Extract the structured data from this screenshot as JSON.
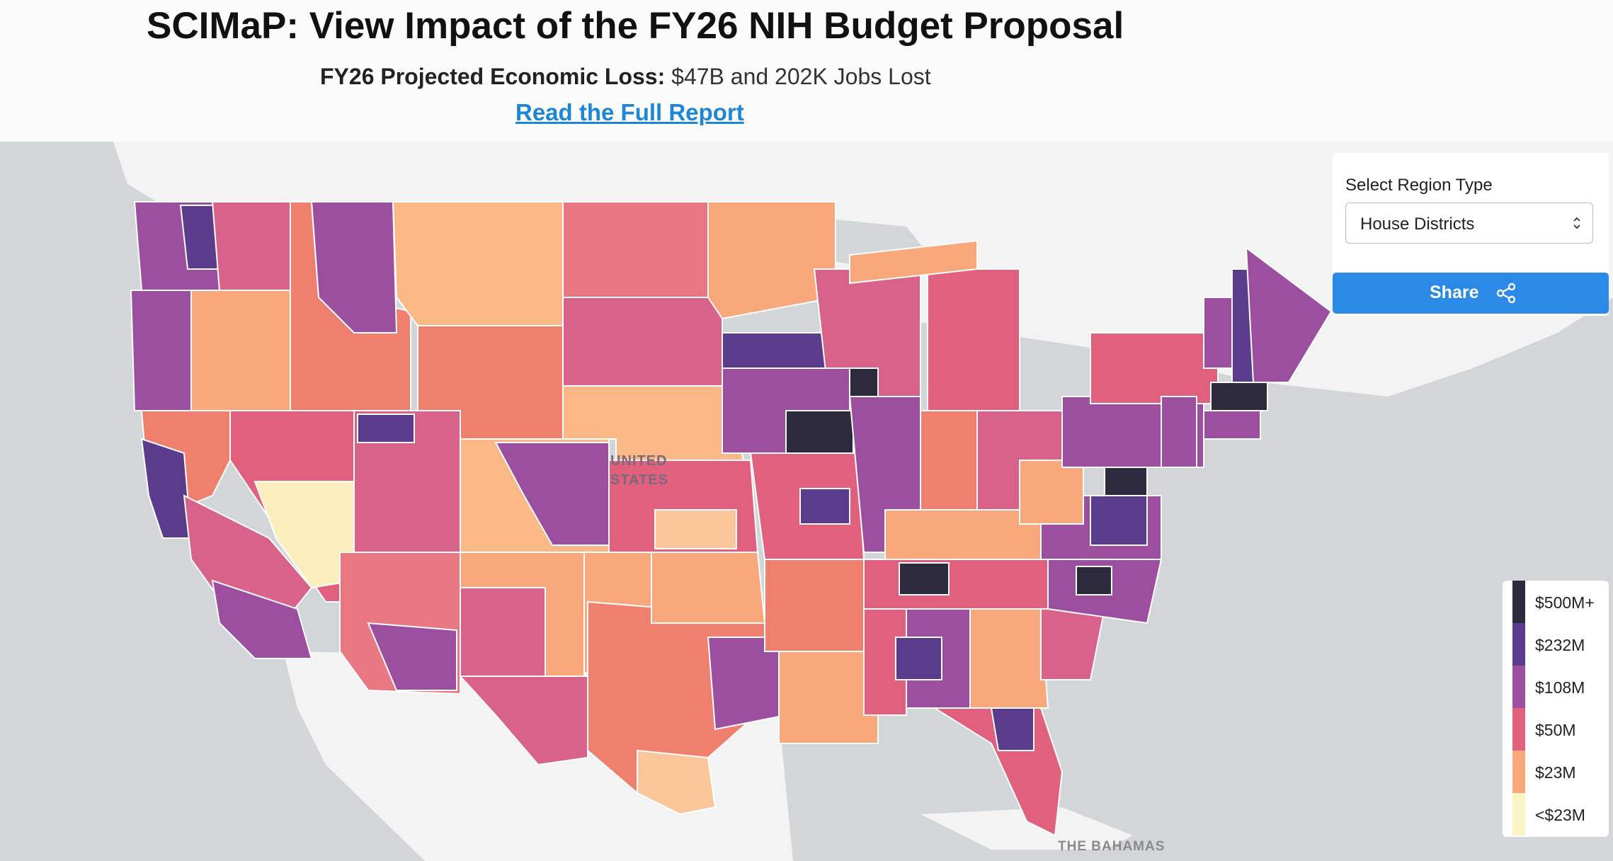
{
  "header": {
    "title": "SCIMaP: View Impact of the FY26 NIH Budget Proposal",
    "loss_label": "FY26 Projected Economic Loss:",
    "loss_value": " $47B and 202K Jobs Lost",
    "report_link": "Read the Full Report"
  },
  "controls": {
    "region_label": "Select Region Type",
    "region_selected": "House Districts",
    "share_label": "Share"
  },
  "map_labels": {
    "country_line1": "UNITED",
    "country_line2": "STATES",
    "bahamas": "THE BAHAMAS"
  },
  "legend": {
    "items": [
      {
        "label": "$500M+",
        "color": "#2d2a3e"
      },
      {
        "label": "$232M",
        "color": "#5b3b8c"
      },
      {
        "label": "$108M",
        "color": "#9c4f9e"
      },
      {
        "label": "$50M",
        "color": "#e0607e"
      },
      {
        "label": "$23M",
        "color": "#f9a87b"
      },
      {
        "label": "<$23M",
        "color": "#fbf3c4"
      }
    ]
  },
  "colors": {
    "ocean": "#d3d6d9",
    "land": "#f3f3f3",
    "accent": "#2b8ae6",
    "link": "#1e86d6"
  }
}
